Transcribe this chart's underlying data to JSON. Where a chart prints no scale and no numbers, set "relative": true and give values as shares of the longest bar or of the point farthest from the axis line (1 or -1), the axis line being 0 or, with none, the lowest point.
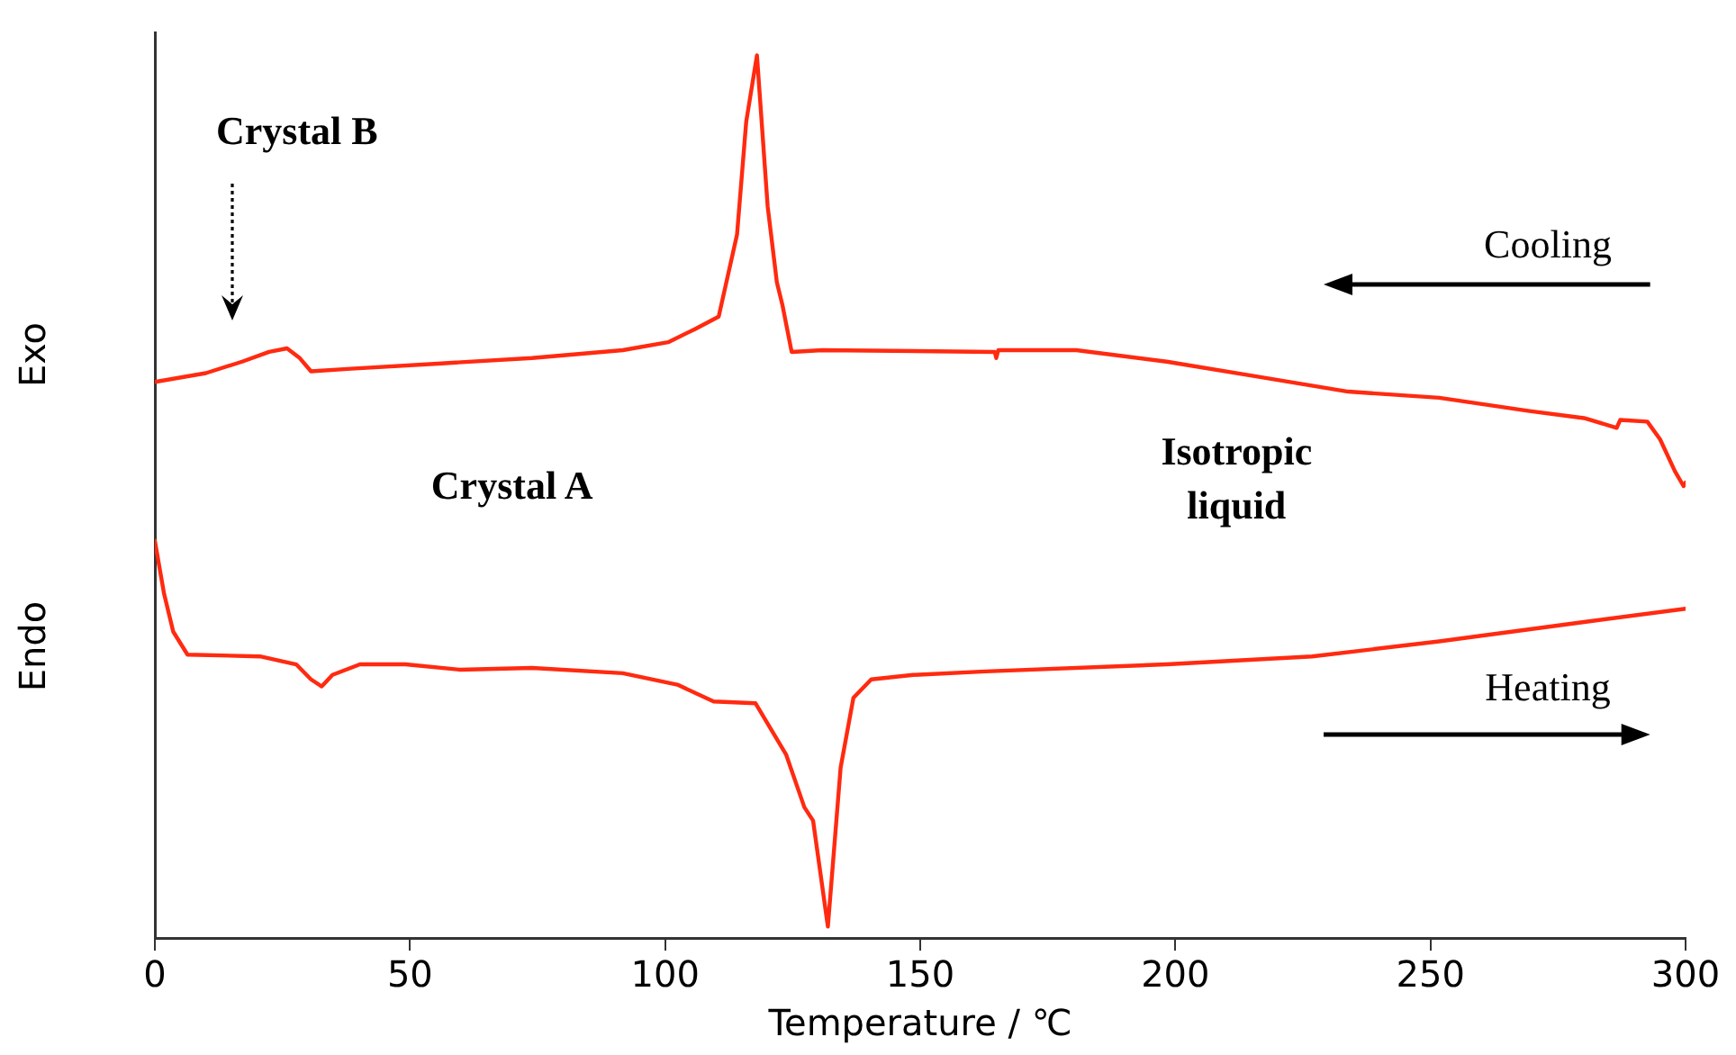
{
  "chart_data": {
    "type": "line",
    "relative": true,
    "xlabel": "Temperature / ℃",
    "xlim": [
      0,
      300
    ],
    "xticks": [
      0,
      50,
      100,
      150,
      200,
      250,
      300
    ],
    "grid": false,
    "legend": false,
    "marker": "none",
    "line_style": "solid",
    "annotations": [
      "Exo",
      "Endo",
      "Crystal B",
      "Crystal A",
      "Isotropic liquid",
      "Cooling",
      "Heating"
    ],
    "series": [
      {
        "color": "#ff2a10",
        "x": [
          0,
          10.0,
          17.1,
          22.4,
          25.9,
          28.4,
          30.6,
          38.4,
          56.2,
          73.9,
          91.7,
          100.6,
          105.9,
          110.5,
          114.1,
          115.9,
          118.0,
          120.1,
          121.9,
          123.0,
          124.8,
          130.8,
          164.6,
          164.9,
          165.3,
          180.6,
          198.3,
          216.1,
          233.9,
          251.7,
          269.4,
          280.1,
          286.5,
          287.2,
          292.5,
          295.0,
          297.9,
          299.6,
          300
        ],
        "values": [
          0.63,
          0.64,
          0.653,
          0.664,
          0.668,
          0.657,
          0.642,
          0.645,
          0.651,
          0.657,
          0.666,
          0.675,
          0.69,
          0.704,
          0.797,
          0.925,
          1,
          0.829,
          0.743,
          0.717,
          0.664,
          0.666,
          0.664,
          0.657,
          0.666,
          0.666,
          0.653,
          0.636,
          0.619,
          0.612,
          0.597,
          0.589,
          0.578,
          0.587,
          0.585,
          0.565,
          0.529,
          0.512,
          0.516
        ]
      },
      {
        "color": "#ff2a10",
        "x": [
          0,
          1.8,
          3.6,
          6.4,
          20.6,
          27.7,
          30.6,
          32.7,
          34.8,
          40.2,
          49.1,
          59.7,
          73.9,
          91.7,
          102.4,
          109.5,
          117.7,
          123.7,
          127.3,
          129.0,
          131.9,
          134.4,
          136.9,
          140.4,
          148.6,
          162.8,
          198.3,
          226.8,
          251.7,
          280.1,
          300
        ],
        "values": [
          0.45,
          0.39,
          0.347,
          0.321,
          0.319,
          0.31,
          0.293,
          0.285,
          0.298,
          0.31,
          0.31,
          0.304,
          0.306,
          0.3,
          0.287,
          0.268,
          0.266,
          0.208,
          0.148,
          0.133,
          0.013,
          0.193,
          0.272,
          0.293,
          0.298,
          0.302,
          0.31,
          0.319,
          0.336,
          0.358,
          0.373
        ]
      }
    ]
  }
}
